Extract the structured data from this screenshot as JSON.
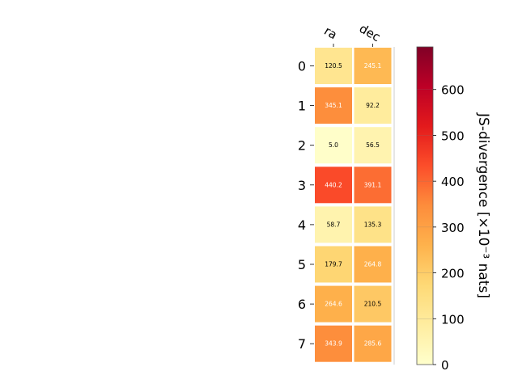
{
  "chart_data": {
    "type": "heatmap",
    "title": "",
    "columns": [
      "ra",
      "dec"
    ],
    "rows": [
      "0",
      "1",
      "2",
      "3",
      "4",
      "5",
      "6",
      "7"
    ],
    "values": [
      [
        120.5,
        245.1
      ],
      [
        345.1,
        92.2
      ],
      [
        5.0,
        56.5
      ],
      [
        440.2,
        391.1
      ],
      [
        58.7,
        135.3
      ],
      [
        179.7,
        264.8
      ],
      [
        264.6,
        210.5
      ],
      [
        343.9,
        285.6
      ]
    ],
    "colorbar": {
      "label": "JS-divergence [×10⁻³ nats]",
      "range": [
        0,
        693
      ],
      "ticks": [
        "0",
        "100",
        "200",
        "300",
        "400",
        "500",
        "600"
      ],
      "colormap": "YlOrRd"
    }
  }
}
